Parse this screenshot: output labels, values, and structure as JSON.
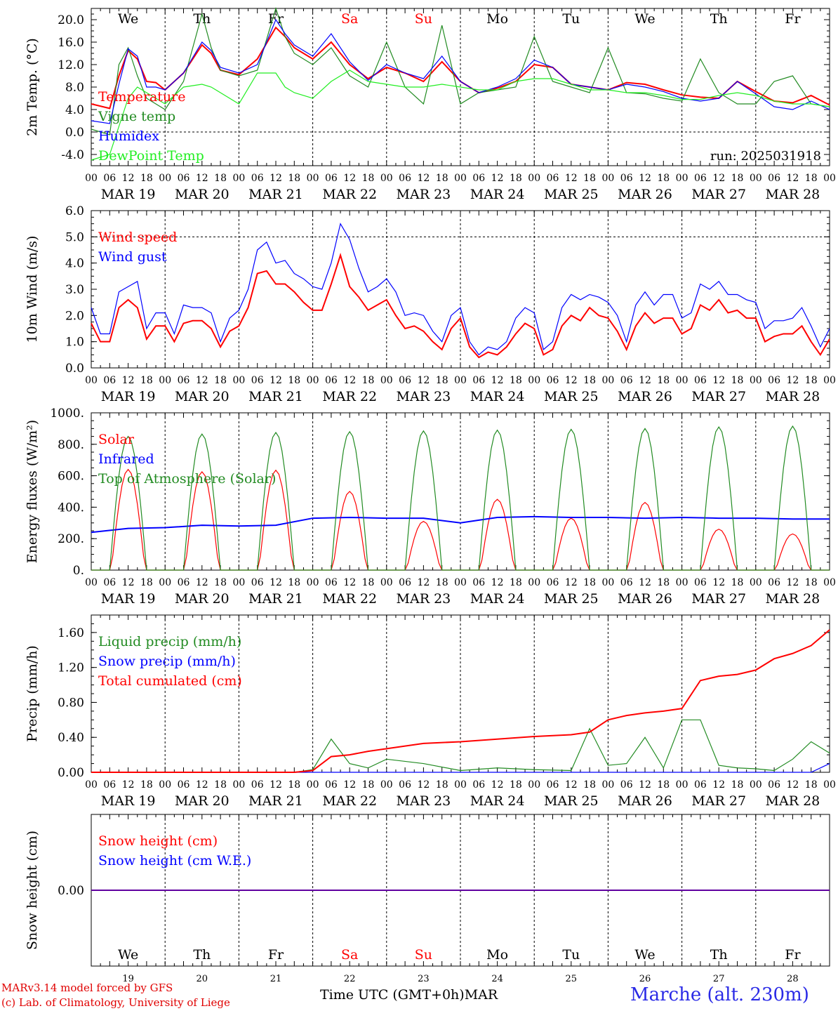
{
  "run_label": "run: 2025031918",
  "days": [
    {
      "date": "MAR 19",
      "dow": "We",
      "num": "19",
      "weekend": false
    },
    {
      "date": "MAR 20",
      "dow": "Th",
      "num": "20",
      "weekend": false
    },
    {
      "date": "MAR 21",
      "dow": "Fr",
      "num": "21",
      "weekend": false
    },
    {
      "date": "MAR 22",
      "dow": "Sa",
      "num": "22",
      "weekend": true
    },
    {
      "date": "MAR 23",
      "dow": "Su",
      "num": "23",
      "weekend": true
    },
    {
      "date": "MAR 24",
      "dow": "Mo",
      "num": "24",
      "weekend": false
    },
    {
      "date": "MAR 25",
      "dow": "Tu",
      "num": "25",
      "weekend": false
    },
    {
      "date": "MAR 26",
      "dow": "We",
      "num": "26",
      "weekend": false
    },
    {
      "date": "MAR 27",
      "dow": "Th",
      "num": "27",
      "weekend": false
    },
    {
      "date": "MAR 28",
      "dow": "Fr",
      "num": "28",
      "weekend": false
    }
  ],
  "hour_ticks": [
    "00",
    "06",
    "12",
    "18"
  ],
  "final_hour": "00",
  "colors": {
    "red": "#ff0000",
    "green": "#228b22",
    "blue": "#0000ff",
    "lightgreen": "#22ee22",
    "credit": "#e00000",
    "station": "#2a2ae6"
  },
  "footer": {
    "credit_line1": "MARv3.14 model forced by GFS",
    "credit_line2": "(c) Lab. of Climatology, University of Liege",
    "x_axis_label": "Time UTC (GMT+0h)",
    "month": "MAR",
    "station": "Marche (alt. 230m)"
  },
  "chart_data": [
    {
      "type": "line",
      "ylabel": "2m Temp. (°C)",
      "ylim": [
        -6,
        22
      ],
      "yticks": [
        {
          "v": 20,
          "t": "20.0"
        },
        {
          "v": 16,
          "t": "16.0"
        },
        {
          "v": 12,
          "t": "12.0"
        },
        {
          "v": 8,
          "t": "8.0"
        },
        {
          "v": 4,
          "t": "4.0"
        },
        {
          "v": 0,
          "t": "0.0"
        },
        {
          "v": -4,
          "t": "-4.0"
        }
      ],
      "ref_lines": [
        0
      ],
      "x_hours": [
        0,
        6,
        9,
        12,
        15,
        18,
        21,
        24,
        30,
        36,
        39,
        42,
        48,
        54,
        60,
        63,
        66,
        72,
        78,
        84,
        90,
        96,
        102,
        108,
        114,
        120,
        126,
        132,
        138,
        144,
        150,
        156,
        162,
        168,
        174,
        180,
        186,
        192,
        198,
        204,
        210,
        216,
        222,
        228,
        234,
        240
      ],
      "series": [
        {
          "name": "Temperature",
          "color": "red",
          "values": [
            5.0,
            4.2,
            10.0,
            14.5,
            13.0,
            9.0,
            8.8,
            7.5,
            10.5,
            15.5,
            14.0,
            11.0,
            10.2,
            13.0,
            18.6,
            17.0,
            15.0,
            13.0,
            16.0,
            12.0,
            9.5,
            11.5,
            10.5,
            9.0,
            12.5,
            9.0,
            7.0,
            7.8,
            9.0,
            12.0,
            11.5,
            8.5,
            8.0,
            7.5,
            8.8,
            8.5,
            7.5,
            6.6,
            6.2,
            6.0,
            9.0,
            7.2,
            5.5,
            5.2,
            6.5,
            4.8
          ]
        },
        {
          "name": "Vigne temp",
          "color": "green",
          "values": [
            0.5,
            -0.5,
            12.0,
            15.0,
            10.0,
            6.0,
            5.0,
            4.0,
            9.0,
            21.0,
            15.0,
            11.0,
            10.0,
            11.0,
            22.0,
            17.0,
            14.0,
            12.0,
            15.0,
            10.0,
            8.0,
            16.0,
            8.0,
            5.0,
            19.0,
            5.0,
            7.0,
            7.5,
            8.0,
            17.0,
            9.0,
            8.0,
            7.0,
            15.0,
            7.0,
            6.8,
            6.0,
            5.5,
            13.0,
            7.0,
            5.0,
            5.0,
            9.0,
            10.0,
            5.0,
            4.5
          ]
        },
        {
          "name": "Humidex",
          "color": "blue",
          "values": [
            2.0,
            1.5,
            8.5,
            14.8,
            13.5,
            8.0,
            8.0,
            7.5,
            10.5,
            16.0,
            14.5,
            11.5,
            10.5,
            12.0,
            20.0,
            17.5,
            15.5,
            13.5,
            17.5,
            12.5,
            9.2,
            12.0,
            10.5,
            9.5,
            13.5,
            9.0,
            7.0,
            8.0,
            9.5,
            12.8,
            11.5,
            8.5,
            8.0,
            7.5,
            8.5,
            8.0,
            7.2,
            6.0,
            5.5,
            6.0,
            9.0,
            6.8,
            4.5,
            4.0,
            5.5,
            4.0
          ]
        },
        {
          "name": "DewPoint Temp",
          "color": "lightgreen",
          "values": [
            -5.0,
            -4.0,
            1.0,
            6.0,
            8.0,
            7.0,
            6.0,
            5.0,
            8.0,
            8.5,
            8.0,
            7.0,
            5.0,
            10.5,
            10.5,
            8.0,
            7.0,
            6.0,
            9.0,
            11.0,
            9.0,
            8.5,
            8.0,
            8.0,
            8.5,
            8.0,
            7.5,
            7.5,
            9.0,
            9.5,
            9.5,
            8.5,
            7.5,
            7.5,
            7.0,
            7.0,
            6.5,
            5.8,
            5.8,
            6.5,
            7.0,
            6.5,
            5.5,
            5.0,
            5.0,
            4.5
          ]
        }
      ]
    },
    {
      "type": "line",
      "ylabel": "10m Wind (m/s)",
      "ylim": [
        0,
        6
      ],
      "yticks": [
        {
          "v": 6,
          "t": "6.0"
        },
        {
          "v": 5,
          "t": "5.0"
        },
        {
          "v": 4,
          "t": "4.0"
        },
        {
          "v": 3,
          "t": "3.0"
        },
        {
          "v": 2,
          "t": "2.0"
        },
        {
          "v": 1,
          "t": "1.0"
        },
        {
          "v": 0,
          "t": "0.0"
        }
      ],
      "ref_lines": [
        5
      ],
      "x_hours": [
        0,
        3,
        6,
        9,
        12,
        15,
        18,
        21,
        24,
        27,
        30,
        33,
        36,
        39,
        42,
        45,
        48,
        51,
        54,
        57,
        60,
        63,
        66,
        69,
        72,
        75,
        78,
        81,
        84,
        87,
        90,
        93,
        96,
        99,
        102,
        105,
        108,
        111,
        114,
        117,
        120,
        123,
        126,
        129,
        132,
        135,
        138,
        141,
        144,
        147,
        150,
        153,
        156,
        159,
        162,
        165,
        168,
        171,
        174,
        177,
        180,
        183,
        186,
        189,
        192,
        195,
        198,
        201,
        204,
        207,
        210,
        213,
        216,
        219,
        222,
        225,
        228,
        231,
        234,
        237,
        240
      ],
      "series": [
        {
          "name": "Wind speed",
          "color": "red",
          "values": [
            1.7,
            1.0,
            1.0,
            2.3,
            2.6,
            2.3,
            1.1,
            1.6,
            1.6,
            1.0,
            1.7,
            1.8,
            1.8,
            1.5,
            0.8,
            1.4,
            1.6,
            2.3,
            3.6,
            3.7,
            3.2,
            3.2,
            2.9,
            2.5,
            2.2,
            2.2,
            3.2,
            4.3,
            3.1,
            2.7,
            2.2,
            2.4,
            2.6,
            2.0,
            1.5,
            1.6,
            1.4,
            1.0,
            0.7,
            1.5,
            1.9,
            0.8,
            0.4,
            0.6,
            0.5,
            0.8,
            1.3,
            1.7,
            1.5,
            0.5,
            0.7,
            1.6,
            2.0,
            1.8,
            2.3,
            2.0,
            1.9,
            1.4,
            0.7,
            1.6,
            2.1,
            1.7,
            1.9,
            1.9,
            1.3,
            1.5,
            2.4,
            2.2,
            2.6,
            2.1,
            2.2,
            1.9,
            1.9,
            1.0,
            1.2,
            1.3,
            1.3,
            1.6,
            1.0,
            0.5,
            1.1
          ]
        },
        {
          "name": "Wind gust",
          "color": "blue",
          "values": [
            2.3,
            1.3,
            1.3,
            2.9,
            3.1,
            3.3,
            1.5,
            2.1,
            2.1,
            1.3,
            2.4,
            2.3,
            2.3,
            2.1,
            1.0,
            1.9,
            2.2,
            3.0,
            4.5,
            4.8,
            4.0,
            4.1,
            3.6,
            3.4,
            3.1,
            3.0,
            4.0,
            5.5,
            4.9,
            3.8,
            2.9,
            3.1,
            3.4,
            2.9,
            2.0,
            2.1,
            2.0,
            1.4,
            1.0,
            2.0,
            2.3,
            1.0,
            0.5,
            0.8,
            0.7,
            1.0,
            1.9,
            2.3,
            2.1,
            0.7,
            1.0,
            2.3,
            2.8,
            2.6,
            2.8,
            2.7,
            2.5,
            2.0,
            1.0,
            2.4,
            2.9,
            2.4,
            2.8,
            2.8,
            1.9,
            2.1,
            3.2,
            3.0,
            3.3,
            2.8,
            2.8,
            2.6,
            2.5,
            1.5,
            1.8,
            1.8,
            1.9,
            2.3,
            1.6,
            0.8,
            1.5
          ]
        }
      ]
    },
    {
      "type": "line",
      "ylabel": "Energy fluxes (W/m²)",
      "ylim": [
        0,
        1000
      ],
      "yticks": [
        {
          "v": 1000,
          "t": "1000."
        },
        {
          "v": 800,
          "t": "800."
        },
        {
          "v": 600,
          "t": "600."
        },
        {
          "v": 400,
          "t": "400."
        },
        {
          "v": 200,
          "t": "200."
        },
        {
          "v": 0,
          "t": "0."
        }
      ],
      "ref_lines": [],
      "curve": "diurnal",
      "daily_peaks": {
        "Solar": [
          640,
          625,
          635,
          500,
          310,
          450,
          330,
          430,
          260,
          230
        ],
        "Top of Atmosphere (Solar)": [
          850,
          865,
          875,
          880,
          885,
          890,
          895,
          900,
          910,
          915
        ]
      },
      "x_hours_infrared": [
        0,
        12,
        24,
        36,
        48,
        60,
        72,
        84,
        96,
        108,
        120,
        132,
        144,
        156,
        168,
        180,
        192,
        204,
        216,
        228,
        240
      ],
      "series": [
        {
          "name": "Solar",
          "color": "red"
        },
        {
          "name": "Infrared",
          "color": "blue",
          "values": [
            240,
            265,
            270,
            285,
            280,
            285,
            330,
            335,
            330,
            330,
            300,
            335,
            340,
            335,
            335,
            330,
            335,
            330,
            330,
            325,
            325
          ]
        },
        {
          "name": "Top of Atmosphere (Solar)",
          "color": "green"
        }
      ]
    },
    {
      "type": "line",
      "ylabel": "Precip (mm/h)",
      "ylim": [
        0,
        1.8
      ],
      "yticks": [
        {
          "v": 1.6,
          "t": "1.60"
        },
        {
          "v": 1.2,
          "t": "1.20"
        },
        {
          "v": 0.8,
          "t": "0.80"
        },
        {
          "v": 0.4,
          "t": "0.40"
        },
        {
          "v": 0,
          "t": "0.00"
        }
      ],
      "ref_lines": [],
      "x_hours": [
        0,
        24,
        48,
        66,
        72,
        78,
        84,
        90,
        96,
        108,
        120,
        132,
        144,
        156,
        162,
        168,
        174,
        180,
        186,
        192,
        198,
        204,
        210,
        216,
        222,
        228,
        234,
        240
      ],
      "series": [
        {
          "name": "Liquid precip (mm/h)",
          "color": "green",
          "values": [
            0,
            0,
            0,
            0,
            0.03,
            0.38,
            0.1,
            0.05,
            0.15,
            0.1,
            0.02,
            0.05,
            0.03,
            0.02,
            0.5,
            0.08,
            0.1,
            0.4,
            0.05,
            0.6,
            0.6,
            0.08,
            0.05,
            0.04,
            0.02,
            0.15,
            0.35,
            0.22
          ]
        },
        {
          "name": "Snow precip (mm/h)",
          "color": "blue",
          "values": [
            0,
            0,
            0,
            0,
            0,
            0,
            0,
            0,
            0,
            0,
            0,
            0,
            0,
            0,
            0,
            0,
            0,
            0,
            0,
            0,
            0,
            0,
            0,
            0,
            0,
            0,
            0,
            0.1
          ]
        },
        {
          "name": "Total cumulated (cm)",
          "color": "red",
          "values": [
            0,
            0,
            0,
            0,
            0.02,
            0.18,
            0.2,
            0.24,
            0.27,
            0.33,
            0.35,
            0.38,
            0.41,
            0.43,
            0.46,
            0.6,
            0.65,
            0.68,
            0.7,
            0.73,
            1.05,
            1.1,
            1.12,
            1.17,
            1.3,
            1.36,
            1.45,
            1.63
          ]
        }
      ]
    },
    {
      "type": "line",
      "ylabel": "Snow height (cm)",
      "ylim": [
        -1,
        1
      ],
      "yticks": [
        {
          "v": 0,
          "t": "0.00"
        }
      ],
      "ref_lines": [],
      "x_hours": [
        0,
        240
      ],
      "series": [
        {
          "name": "Snow height (cm)",
          "color": "red",
          "values": [
            0,
            0
          ]
        },
        {
          "name": "Snow height (cm W.E.)",
          "color": "blue",
          "values": [
            0,
            0
          ]
        }
      ]
    }
  ]
}
